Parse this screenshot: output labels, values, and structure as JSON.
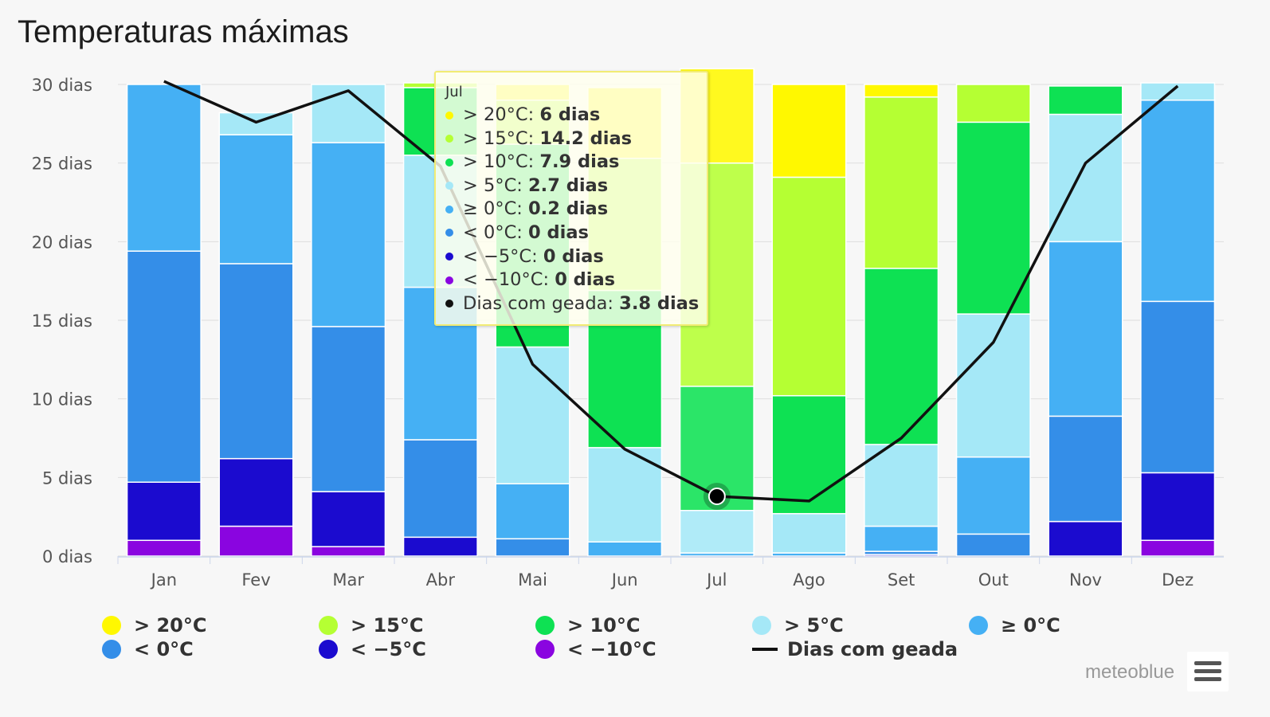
{
  "title": "Temperaturas máximas",
  "brand": "meteoblue",
  "chart_data": {
    "type": "bar",
    "stacked": true,
    "categories": [
      "Jan",
      "Fev",
      "Mar",
      "Abr",
      "Mai",
      "Jun",
      "Jul",
      "Ago",
      "Set",
      "Out",
      "Nov",
      "Dez"
    ],
    "ylim": [
      0,
      30
    ],
    "yticks": [
      {
        "value": 0,
        "label": "0 dias"
      },
      {
        "value": 5,
        "label": "5 dias"
      },
      {
        "value": 10,
        "label": "10 dias"
      },
      {
        "value": 15,
        "label": "15 dias"
      },
      {
        "value": 20,
        "label": "20 dias"
      },
      {
        "value": 25,
        "label": "25 dias"
      },
      {
        "value": 30,
        "label": "30 dias"
      }
    ],
    "grid": true,
    "series": [
      {
        "name": "< -10°C",
        "color": "#8a05e0",
        "values": [
          1.0,
          1.9,
          0.6,
          0,
          0,
          0,
          0,
          0,
          0,
          0,
          0,
          1.0
        ]
      },
      {
        "name": "< -5°C",
        "color": "#1b0bcf",
        "values": [
          3.7,
          4.3,
          3.5,
          1.2,
          0,
          0,
          0,
          0,
          0.1,
          0,
          2.2,
          4.3
        ]
      },
      {
        "name": "< 0°C",
        "color": "#348ee8",
        "values": [
          14.7,
          12.4,
          10.5,
          6.2,
          1.1,
          0,
          0,
          0,
          0.2,
          1.4,
          6.7,
          10.9
        ]
      },
      {
        "name": "≥ 0°C",
        "color": "#45b0f4",
        "values": [
          10.6,
          8.2,
          11.7,
          9.7,
          3.5,
          0.9,
          0.2,
          0.2,
          1.6,
          4.9,
          11.1,
          12.8
        ]
      },
      {
        "name": "> 5°C",
        "color": "#a5e8f7",
        "values": [
          0,
          1.4,
          3.7,
          8.4,
          8.7,
          6.0,
          2.7,
          2.5,
          5.2,
          9.1,
          8.1,
          1.1
        ]
      },
      {
        "name": "> 10°C",
        "color": "#0ee153",
        "values": [
          0,
          0,
          0,
          4.3,
          12.9,
          10.0,
          7.9,
          7.5,
          11.2,
          12.2,
          1.8,
          0
        ]
      },
      {
        "name": "> 15°C",
        "color": "#b5ff33",
        "values": [
          0,
          0,
          0,
          0.3,
          2.8,
          8.4,
          14.2,
          13.9,
          10.9,
          2.4,
          0,
          0
        ]
      },
      {
        "name": "> 20°C",
        "color": "#fff800",
        "values": [
          0,
          0,
          0,
          0,
          1.0,
          4.5,
          6.0,
          5.9,
          0.8,
          0,
          0,
          0
        ]
      }
    ],
    "line_series": {
      "name": "Dias com geada",
      "color": "#111111",
      "values": [
        30.2,
        27.6,
        29.6,
        24.8,
        12.2,
        6.8,
        3.8,
        3.5,
        7.5,
        13.6,
        25.0,
        29.9
      ]
    },
    "highlight_index": 6,
    "legend_position": "bottom"
  },
  "legend": [
    {
      "label": "> 20°C",
      "color": "#fff800"
    },
    {
      "label": "> 15°C",
      "color": "#b5ff33"
    },
    {
      "label": "> 10°C",
      "color": "#0ee153"
    },
    {
      "label": "> 5°C",
      "color": "#a5e8f7"
    },
    {
      "label": "≥ 0°C",
      "color": "#45b0f4"
    },
    {
      "label": "< 0°C",
      "color": "#348ee8"
    },
    {
      "label": "< −5°C",
      "color": "#1b0bcf"
    },
    {
      "label": "< −10°C",
      "color": "#8a05e0"
    },
    {
      "label": "Dias com geada",
      "color": "#111111",
      "type": "line"
    }
  ],
  "tooltip": {
    "header": "Jul",
    "rows": [
      {
        "label": "> 20°C: ",
        "value": "6 dias",
        "color": "#fff800"
      },
      {
        "label": "> 15°C: ",
        "value": "14.2 dias",
        "color": "#b5ff33"
      },
      {
        "label": "> 10°C: ",
        "value": "7.9 dias",
        "color": "#0ee153"
      },
      {
        "label": "> 5°C: ",
        "value": "2.7 dias",
        "color": "#a5e8f7"
      },
      {
        "label": "≥ 0°C: ",
        "value": "0.2 dias",
        "color": "#45b0f4"
      },
      {
        "label": "< 0°C: ",
        "value": "0 dias",
        "color": "#348ee8"
      },
      {
        "label": "< −5°C: ",
        "value": "0 dias",
        "color": "#1b0bcf"
      },
      {
        "label": "< −10°C: ",
        "value": "0 dias",
        "color": "#8a05e0"
      },
      {
        "label": "Dias com geada: ",
        "value": "3.8 dias",
        "color": "#111111"
      }
    ]
  }
}
